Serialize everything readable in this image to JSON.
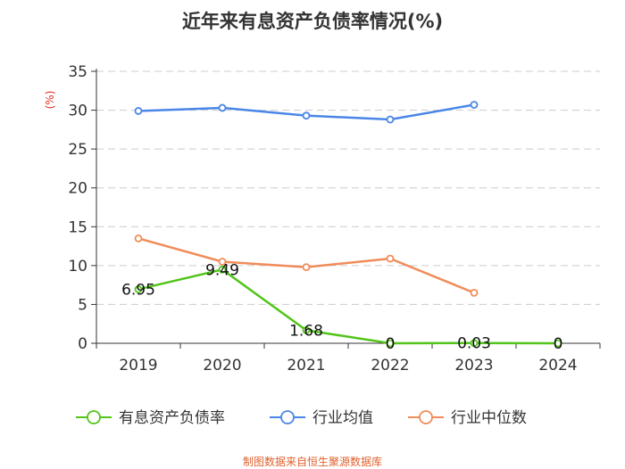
{
  "chart_data": {
    "type": "line",
    "title": "近年来有息资产负债率情况(%)",
    "ylabel": "(%)",
    "xlabel": "",
    "categories": [
      "2019",
      "2020",
      "2021",
      "2022",
      "2023",
      "2024"
    ],
    "ylim": [
      0,
      35
    ],
    "yticks": [
      0,
      5,
      10,
      15,
      20,
      25,
      30,
      35
    ],
    "grid": true,
    "legend_position": "bottom",
    "series": [
      {
        "name": "有息资产负债率",
        "color": "#52c41a",
        "values": [
          6.95,
          9.49,
          1.68,
          0,
          0.03,
          0
        ],
        "labels": [
          "6.95",
          "9.49",
          "1.68",
          "0",
          "0.03",
          "0"
        ]
      },
      {
        "name": "行业均值",
        "color": "#4a86e8",
        "values": [
          29.9,
          30.3,
          29.3,
          28.8,
          30.7,
          null
        ]
      },
      {
        "name": "行业中位数",
        "color": "#f08c5a",
        "values": [
          13.5,
          10.5,
          9.8,
          10.9,
          6.5,
          null
        ]
      }
    ]
  },
  "source_text": "制图数据来自恒生聚源数据库"
}
